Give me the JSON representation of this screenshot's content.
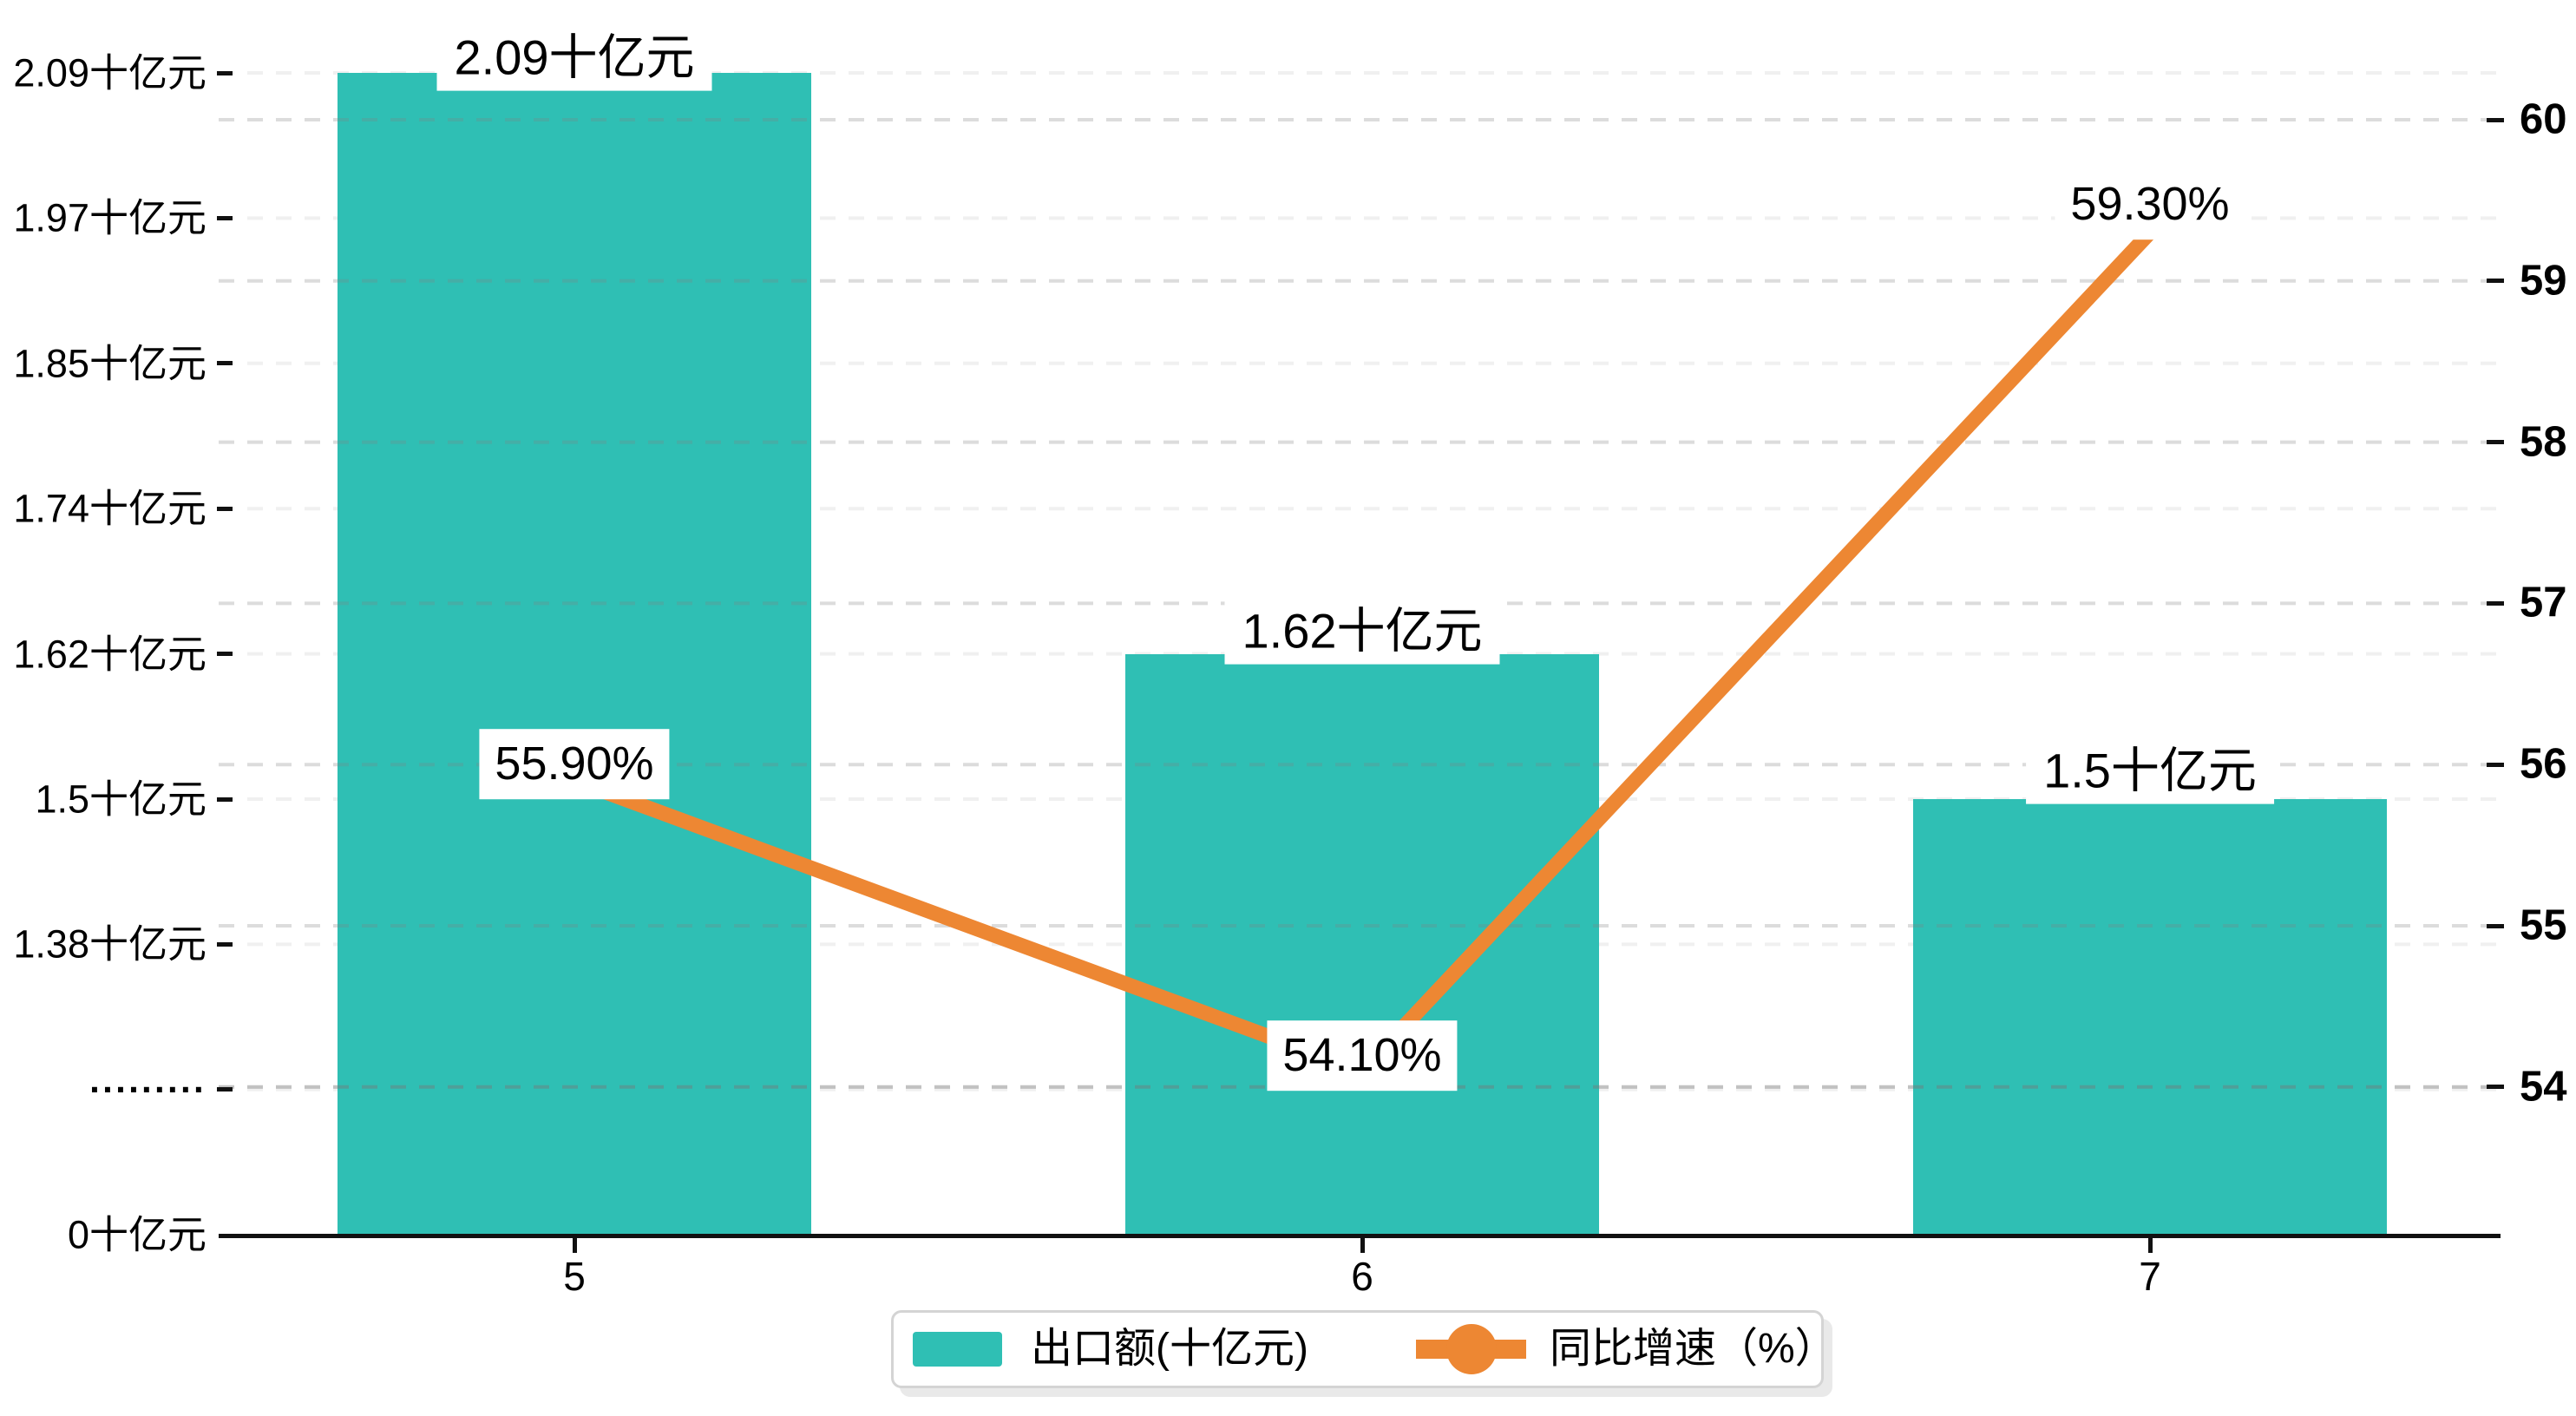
{
  "chart_data": {
    "type": "bar",
    "subtype": "bar+line dual-axis",
    "categories": [
      "5",
      "6",
      "7"
    ],
    "series": [
      {
        "name": "出口额(十亿元)",
        "type": "bar",
        "values": [
          2.09,
          1.62,
          1.5
        ],
        "point_labels": [
          "2.09十亿元",
          "1.62十亿元",
          "1.5十亿元"
        ],
        "color": "#2FBFB4"
      },
      {
        "name": "同比增速（%）",
        "type": "line",
        "values": [
          55.9,
          54.1,
          59.3
        ],
        "point_labels": [
          "55.90%",
          "54.10%",
          "59.30%"
        ],
        "color": "#ED8733"
      }
    ],
    "title": "",
    "xlabel": "",
    "ylabel_left": "",
    "ylabel_right": "",
    "axis_left": {
      "tick_labels": [
        "2.09十亿元",
        "1.97十亿元",
        "1.85十亿元",
        "1.74十亿元",
        "1.62十亿元",
        "1.5十亿元",
        "1.38十亿元",
        "·········",
        "0十亿元"
      ],
      "tick_values": [
        2.09,
        1.97,
        1.85,
        1.74,
        1.62,
        1.5,
        1.38,
        null,
        0
      ],
      "broken_axis": true
    },
    "axis_right": {
      "tick_labels": [
        "60",
        "59",
        "58",
        "57",
        "56",
        "55",
        "54"
      ],
      "min": 54,
      "max": 60
    },
    "grid": "dashed horizontal gridlines for both axes",
    "legend_position": "bottom-center"
  },
  "legend": {
    "items": [
      {
        "label": "出口额(十亿元)"
      },
      {
        "label": "同比增速（%）"
      }
    ]
  },
  "colors": {
    "bar": "#2FBFB4",
    "line": "#ED8733",
    "axis": "#111111",
    "text": "#000000",
    "grid_under": "#f0f0f0",
    "grid_over": "rgba(130,130,130,0.28)",
    "grid_break": "rgba(120,120,120,0.45)",
    "label_bg": "#ffffff",
    "legend_border": "#d4d4d4"
  }
}
